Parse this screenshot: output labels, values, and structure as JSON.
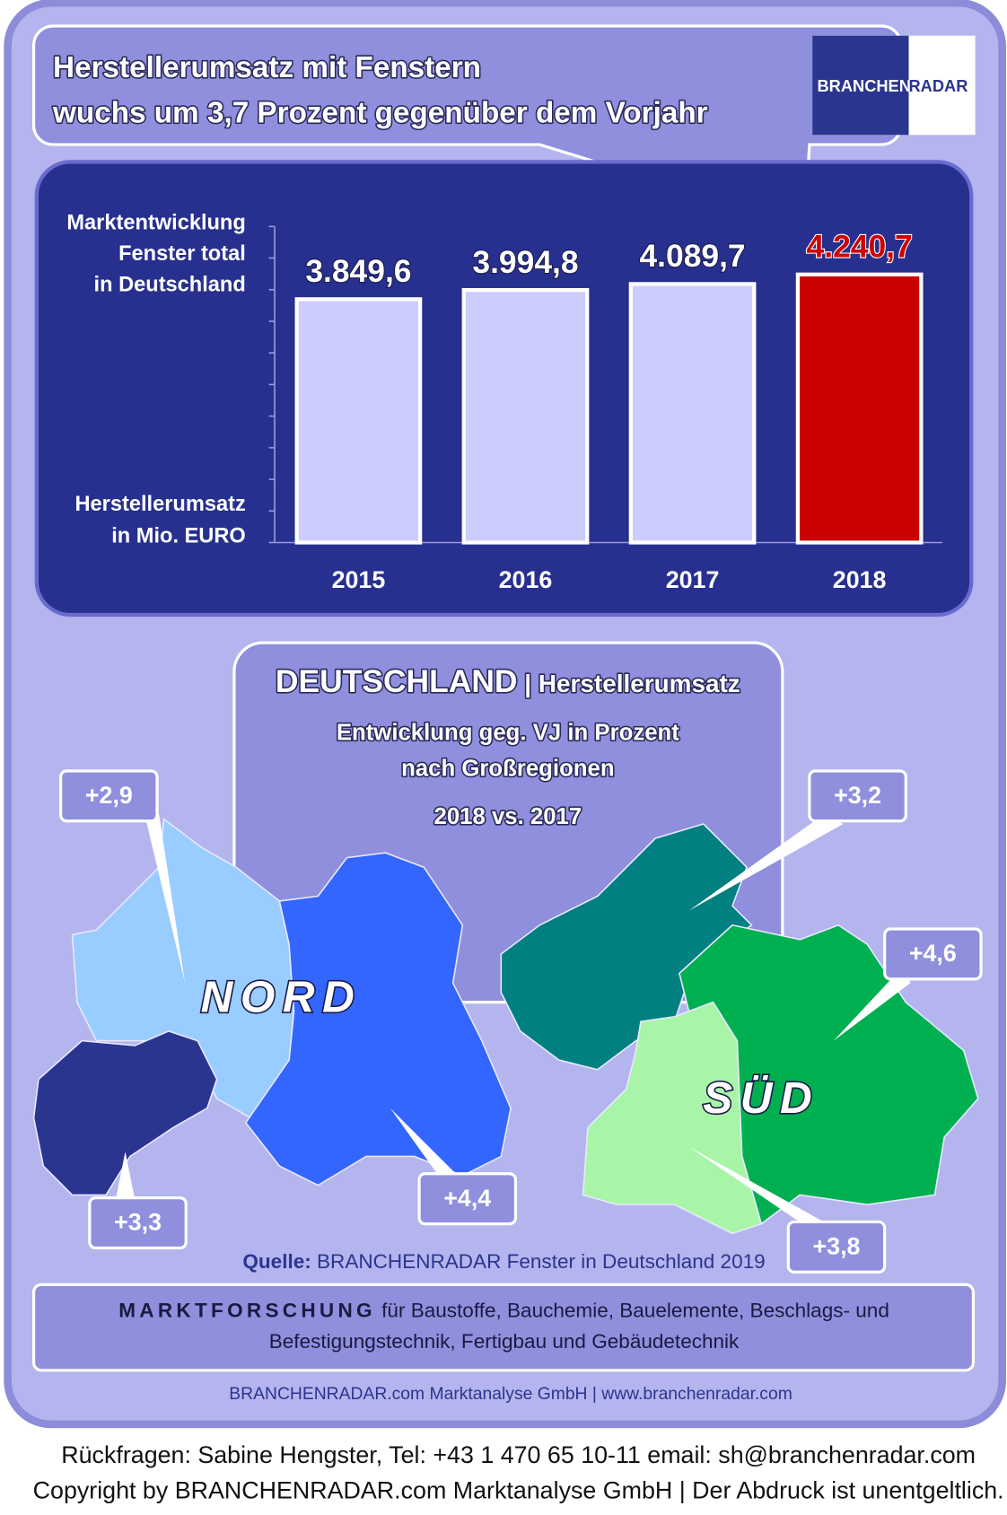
{
  "header": {
    "title_lines": [
      "Herstellerumsatz mit Fenstern",
      "wuchs um 3,7 Prozent gegenüber dem Vorjahr"
    ],
    "logo": [
      "BRANCHEN",
      "RADAR"
    ]
  },
  "chart_data": {
    "type": "bar",
    "label_top": [
      "Marktentwicklung",
      "Fenster total",
      "in Deutschland"
    ],
    "label_bottom": [
      "Herstellerumsatz",
      "in Mio. EURO"
    ],
    "categories": [
      "2015",
      "2016",
      "2017",
      "2018"
    ],
    "values": [
      3849.6,
      3994.8,
      4089.7,
      4240.7
    ],
    "value_labels": [
      "3.849,6",
      "3.994,8",
      "4.089,7",
      "4.240,7"
    ],
    "colors": [
      "#ccccff",
      "#ccccff",
      "#ccccff",
      "#cc0000"
    ],
    "ylim": [
      0,
      5000
    ],
    "yticks": [
      0,
      500,
      1000,
      1500,
      2000,
      2500,
      3000,
      3500,
      4000,
      4500,
      5000
    ]
  },
  "map": {
    "heading": "DEUTSCHLAND",
    "separator": "|",
    "subheading": "Herstellerumsatz",
    "lines": [
      "Entwicklung geg. VJ in Prozent",
      "nach Großregionen",
      "2018 vs. 2017"
    ],
    "north": "NORD",
    "south": "SÜD",
    "regions": [
      "+2,9",
      "+3,3",
      "+4,4",
      "+3,2",
      "+4,6",
      "+3,8"
    ]
  },
  "source": {
    "prefix": "Quelle:",
    "text": "BRANCHENRADAR Fenster in Deutschland 2019"
  },
  "banner": {
    "lead": "MARKTFORSCHUNG",
    "line1": "für Baustoffe, Bauchemie, Bauelemente, Beschlags- und",
    "line2": "Befestigungstechnik, Fertigbau und Gebäudetechnik"
  },
  "footer": {
    "company": "BRANCHENRADAR.com Marktanalyse GmbH | www.branchenradar.com",
    "contact": "Rückfragen: Sabine Hengster, Tel: +43 1 470 65 10-11 email: sh@branchenradar.com",
    "copyright": "Copyright by BRANCHENRADAR.com  Marktanalyse GmbH | Der Abdruck ist unentgeltlich."
  }
}
